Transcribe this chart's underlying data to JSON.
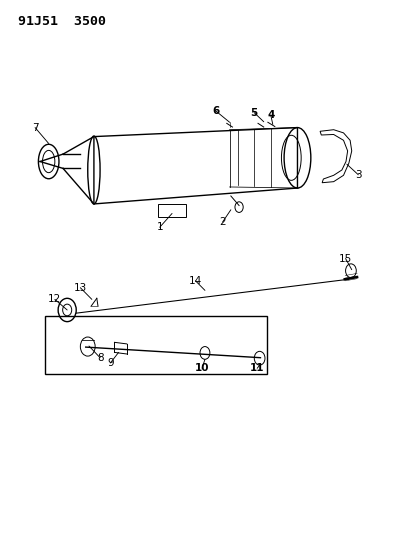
{
  "title": "91J51  3500",
  "background_color": "#ffffff",
  "line_color": "#000000",
  "fig_width": 4.14,
  "fig_height": 5.33,
  "dpi": 100
}
